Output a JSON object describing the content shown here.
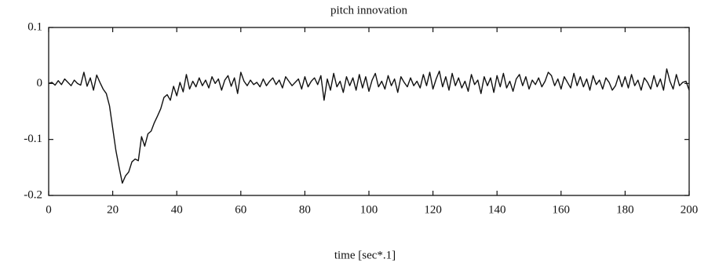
{
  "chart_data": {
    "type": "line",
    "title": "pitch innovation",
    "x_label": "time [sec*.1]",
    "color": "#111111",
    "xlim": [
      0,
      200
    ],
    "xticks": [
      0,
      20,
      40,
      60,
      80,
      100,
      120,
      140,
      160,
      180,
      200
    ],
    "ylim": [
      -0.2,
      0.1
    ],
    "yticks": [
      0.1,
      0,
      -0.1,
      -0.2
    ],
    "x": [
      0,
      1,
      2,
      3,
      4,
      5,
      6,
      7,
      8,
      9,
      10,
      11,
      12,
      13,
      14,
      15,
      16,
      17,
      18,
      19,
      20,
      21,
      22,
      23,
      24,
      25,
      26,
      27,
      28,
      29,
      30,
      31,
      32,
      33,
      34,
      35,
      36,
      37,
      38,
      39,
      40,
      41,
      42,
      43,
      44,
      45,
      46,
      47,
      48,
      49,
      50,
      51,
      52,
      53,
      54,
      55,
      56,
      57,
      58,
      59,
      60,
      61,
      62,
      63,
      64,
      65,
      66,
      67,
      68,
      69,
      70,
      71,
      72,
      73,
      74,
      75,
      76,
      77,
      78,
      79,
      80,
      81,
      82,
      83,
      84,
      85,
      86,
      87,
      88,
      89,
      90,
      91,
      92,
      93,
      94,
      95,
      96,
      97,
      98,
      99,
      100,
      101,
      102,
      103,
      104,
      105,
      106,
      107,
      108,
      109,
      110,
      111,
      112,
      113,
      114,
      115,
      116,
      117,
      118,
      119,
      120,
      121,
      122,
      123,
      124,
      125,
      126,
      127,
      128,
      129,
      130,
      131,
      132,
      133,
      134,
      135,
      136,
      137,
      138,
      139,
      140,
      141,
      142,
      143,
      144,
      145,
      146,
      147,
      148,
      149,
      150,
      151,
      152,
      153,
      154,
      155,
      156,
      157,
      158,
      159,
      160,
      161,
      162,
      163,
      164,
      165,
      166,
      167,
      168,
      169,
      170,
      171,
      172,
      173,
      174,
      175,
      176,
      177,
      178,
      179,
      180,
      181,
      182,
      183,
      184,
      185,
      186,
      187,
      188,
      189,
      190,
      191,
      192,
      193,
      194,
      195,
      196,
      197,
      198,
      199,
      200
    ],
    "values": [
      0,
      0.002,
      -0.003,
      0.005,
      -0.002,
      0.008,
      0.002,
      -0.004,
      0.006,
      0,
      -0.003,
      0.02,
      -0.005,
      0.01,
      -0.012,
      0.015,
      0.002,
      -0.01,
      -0.018,
      -0.04,
      -0.08,
      -0.12,
      -0.15,
      -0.178,
      -0.165,
      -0.158,
      -0.14,
      -0.135,
      -0.138,
      -0.095,
      -0.112,
      -0.09,
      -0.085,
      -0.07,
      -0.058,
      -0.045,
      -0.025,
      -0.02,
      -0.03,
      -0.005,
      -0.022,
      0.002,
      -0.015,
      0.016,
      -0.01,
      0.004,
      -0.006,
      0.01,
      -0.004,
      0.006,
      -0.008,
      0.012,
      0,
      0.008,
      -0.012,
      0.006,
      0.014,
      -0.005,
      0.01,
      -0.018,
      0.02,
      0.004,
      -0.004,
      0.006,
      -0.002,
      0.002,
      -0.006,
      0.008,
      -0.004,
      0.004,
      0.01,
      -0.002,
      0.006,
      -0.008,
      0.012,
      0.004,
      -0.004,
      0.002,
      0.008,
      -0.01,
      0.012,
      -0.006,
      0.004,
      0.01,
      -0.002,
      0.014,
      -0.03,
      0.008,
      -0.012,
      0.018,
      -0.006,
      0.004,
      -0.016,
      0.012,
      -0.004,
      0.01,
      -0.012,
      0.016,
      -0.008,
      0.012,
      -0.014,
      0.006,
      0.018,
      -0.006,
      0.004,
      -0.01,
      0.014,
      -0.004,
      0.008,
      -0.016,
      0.012,
      0.002,
      -0.006,
      0.01,
      -0.004,
      0.004,
      -0.008,
      0.016,
      -0.004,
      0.02,
      -0.01,
      0.008,
      0.022,
      -0.006,
      0.012,
      -0.012,
      0.018,
      -0.004,
      0.01,
      -0.008,
      0.004,
      -0.014,
      0.016,
      -0.002,
      0.006,
      -0.018,
      0.012,
      -0.004,
      0.01,
      -0.016,
      0.014,
      -0.006,
      0.018,
      -0.008,
      0.004,
      -0.014,
      0.008,
      0.016,
      -0.004,
      0.012,
      -0.01,
      0.006,
      -0.002,
      0.01,
      -0.006,
      0.004,
      0.02,
      0.014,
      -0.004,
      0.008,
      -0.01,
      0.012,
      0.002,
      -0.008,
      0.018,
      -0.004,
      0.012,
      -0.006,
      0.008,
      -0.012,
      0.014,
      -0.002,
      0.006,
      -0.01,
      0.01,
      0.002,
      -0.012,
      -0.004,
      0.014,
      -0.006,
      0.012,
      -0.008,
      0.016,
      -0.004,
      0.006,
      -0.012,
      0.01,
      0.002,
      -0.01,
      0.014,
      -0.006,
      0.008,
      -0.012,
      0.026,
      0.004,
      -0.01,
      0.016,
      -0.004,
      0.002,
      0.004,
      -0.012
    ]
  }
}
